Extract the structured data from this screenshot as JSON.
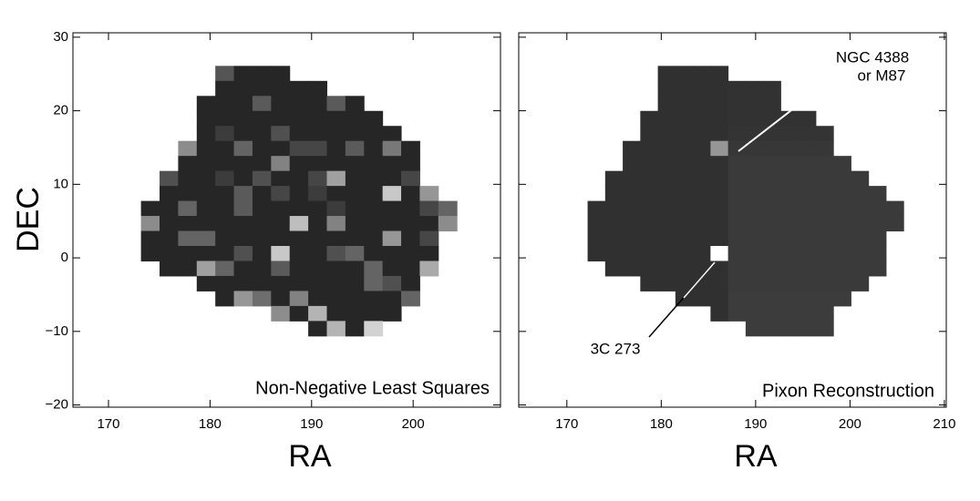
{
  "chart_data": [
    {
      "type": "heatmap",
      "caption": "Non-Negative Least Squares",
      "xlabel": "RA",
      "ylabel": "DEC",
      "xlim": [
        166.5,
        208.6
      ],
      "ylim": [
        -20.3,
        30.6
      ],
      "xticks": [
        170,
        180,
        190,
        200
      ],
      "yticks": [
        {
          "value": -20,
          "label": "−20"
        },
        {
          "value": -10,
          "label": "−10"
        },
        0,
        10,
        20,
        30
      ],
      "show_ytick_labels": true,
      "grid": {
        "x0": 173.2,
        "y0": 26.1,
        "dx": 1.83,
        "dy": 2.04,
        "intensity": [
          [
            null,
            null,
            null,
            null,
            85,
            38,
            38,
            38,
            null,
            null,
            null,
            null,
            null,
            null,
            null,
            null,
            null
          ],
          [
            null,
            null,
            null,
            null,
            38,
            38,
            38,
            38,
            38,
            38,
            null,
            null,
            null,
            null,
            null,
            null,
            null
          ],
          [
            null,
            null,
            null,
            38,
            38,
            38,
            90,
            38,
            38,
            38,
            90,
            38,
            null,
            null,
            null,
            null,
            null
          ],
          [
            null,
            null,
            null,
            38,
            38,
            38,
            38,
            38,
            38,
            38,
            38,
            38,
            38,
            null,
            null,
            null,
            null
          ],
          [
            null,
            null,
            null,
            38,
            60,
            38,
            38,
            80,
            38,
            38,
            38,
            38,
            38,
            38,
            null,
            null,
            null
          ],
          [
            null,
            null,
            140,
            38,
            38,
            100,
            38,
            38,
            70,
            70,
            38,
            90,
            38,
            120,
            38,
            null,
            null
          ],
          [
            null,
            null,
            38,
            38,
            38,
            38,
            38,
            130,
            38,
            38,
            38,
            38,
            38,
            38,
            38,
            null,
            null
          ],
          [
            null,
            80,
            38,
            38,
            60,
            38,
            80,
            38,
            38,
            70,
            160,
            38,
            38,
            38,
            70,
            null,
            null
          ],
          [
            null,
            38,
            38,
            38,
            38,
            90,
            38,
            70,
            38,
            60,
            38,
            38,
            38,
            200,
            38,
            150,
            null
          ],
          [
            38,
            38,
            100,
            38,
            38,
            90,
            38,
            38,
            38,
            38,
            60,
            38,
            38,
            38,
            38,
            70,
            100
          ],
          [
            140,
            38,
            38,
            38,
            38,
            38,
            38,
            38,
            190,
            38,
            130,
            38,
            38,
            38,
            38,
            38,
            140
          ],
          [
            38,
            38,
            100,
            100,
            38,
            38,
            38,
            38,
            38,
            38,
            38,
            38,
            38,
            150,
            38,
            70,
            null
          ],
          [
            38,
            38,
            38,
            38,
            38,
            80,
            38,
            200,
            38,
            38,
            80,
            100,
            38,
            38,
            38,
            38,
            null
          ],
          [
            null,
            38,
            38,
            160,
            100,
            38,
            38,
            90,
            38,
            38,
            38,
            38,
            100,
            38,
            38,
            170,
            null
          ],
          [
            null,
            null,
            null,
            38,
            38,
            38,
            38,
            38,
            38,
            38,
            38,
            38,
            100,
            80,
            38,
            null,
            null
          ],
          [
            null,
            null,
            null,
            null,
            38,
            150,
            110,
            38,
            130,
            38,
            38,
            38,
            38,
            38,
            100,
            null,
            null
          ],
          [
            null,
            null,
            null,
            null,
            null,
            null,
            null,
            140,
            38,
            180,
            38,
            38,
            38,
            38,
            null,
            null,
            null
          ],
          [
            null,
            null,
            null,
            null,
            null,
            null,
            null,
            null,
            null,
            38,
            180,
            38,
            210,
            null,
            null,
            null,
            null
          ]
        ]
      }
    },
    {
      "type": "heatmap",
      "caption": "Pixon Reconstruction",
      "xlabel": "RA",
      "xlim": [
        164.9,
        210.2
      ],
      "ylim": [
        -20.3,
        30.6
      ],
      "xticks": [
        170,
        180,
        190,
        200,
        210
      ],
      "yticks": [
        {
          "value": -20,
          "label": "−20"
        },
        {
          "value": -10,
          "label": "−10"
        },
        0,
        10,
        20,
        30
      ],
      "show_ytick_labels": false,
      "annotations": [
        {
          "text": "NGC 4388"
        },
        {
          "text": "or M87"
        },
        {
          "text": "3C 273"
        }
      ],
      "grid": {
        "x0": 172.2,
        "y0": 26.1,
        "dx": 1.86,
        "dy": 2.04,
        "intensity": [
          [
            null,
            null,
            null,
            null,
            48,
            48,
            48,
            48,
            null,
            null,
            null,
            null,
            null,
            null,
            null,
            null,
            null,
            null
          ],
          [
            null,
            null,
            null,
            null,
            48,
            48,
            48,
            48,
            50,
            50,
            50,
            null,
            null,
            null,
            null,
            null,
            null,
            null
          ],
          [
            null,
            null,
            null,
            null,
            48,
            48,
            48,
            48,
            50,
            50,
            50,
            null,
            null,
            null,
            null,
            null,
            null,
            null
          ],
          [
            null,
            null,
            null,
            48,
            48,
            48,
            48,
            48,
            50,
            50,
            50,
            50,
            50,
            null,
            null,
            null,
            null,
            null
          ],
          [
            null,
            null,
            null,
            48,
            48,
            48,
            48,
            48,
            52,
            52,
            52,
            52,
            52,
            52,
            null,
            null,
            null,
            null
          ],
          [
            null,
            null,
            48,
            48,
            48,
            48,
            48,
            150,
            55,
            55,
            55,
            55,
            55,
            55,
            null,
            null,
            null,
            null
          ],
          [
            null,
            null,
            48,
            48,
            48,
            48,
            48,
            48,
            58,
            58,
            58,
            58,
            58,
            58,
            58,
            null,
            null,
            null
          ],
          [
            null,
            48,
            48,
            48,
            48,
            48,
            48,
            48,
            58,
            58,
            58,
            58,
            58,
            58,
            58,
            58,
            null,
            null
          ],
          [
            null,
            48,
            48,
            48,
            48,
            48,
            48,
            48,
            58,
            58,
            58,
            58,
            58,
            58,
            58,
            58,
            58,
            null
          ],
          [
            48,
            48,
            48,
            48,
            48,
            48,
            48,
            48,
            58,
            58,
            58,
            58,
            58,
            58,
            58,
            58,
            58,
            58
          ],
          [
            48,
            48,
            48,
            48,
            48,
            48,
            48,
            48,
            58,
            58,
            58,
            58,
            58,
            58,
            58,
            58,
            58,
            58
          ],
          [
            48,
            48,
            48,
            48,
            48,
            48,
            48,
            48,
            58,
            58,
            58,
            58,
            58,
            58,
            58,
            58,
            58,
            null
          ],
          [
            48,
            48,
            48,
            48,
            48,
            48,
            48,
            255,
            58,
            58,
            58,
            58,
            58,
            58,
            58,
            58,
            58,
            null
          ],
          [
            null,
            48,
            48,
            48,
            48,
            48,
            48,
            48,
            58,
            58,
            58,
            58,
            58,
            58,
            58,
            58,
            58,
            null
          ],
          [
            null,
            null,
            null,
            48,
            48,
            48,
            48,
            48,
            58,
            58,
            58,
            58,
            58,
            58,
            58,
            58,
            null,
            null
          ],
          [
            null,
            null,
            null,
            null,
            null,
            48,
            48,
            48,
            60,
            60,
            60,
            60,
            60,
            60,
            60,
            null,
            null,
            null
          ],
          [
            null,
            null,
            null,
            null,
            null,
            null,
            null,
            48,
            60,
            60,
            60,
            60,
            60,
            60,
            null,
            null,
            null,
            null
          ],
          [
            null,
            null,
            null,
            null,
            null,
            null,
            null,
            null,
            null,
            60,
            60,
            60,
            60,
            60,
            null,
            null,
            null,
            null
          ]
        ]
      }
    }
  ]
}
